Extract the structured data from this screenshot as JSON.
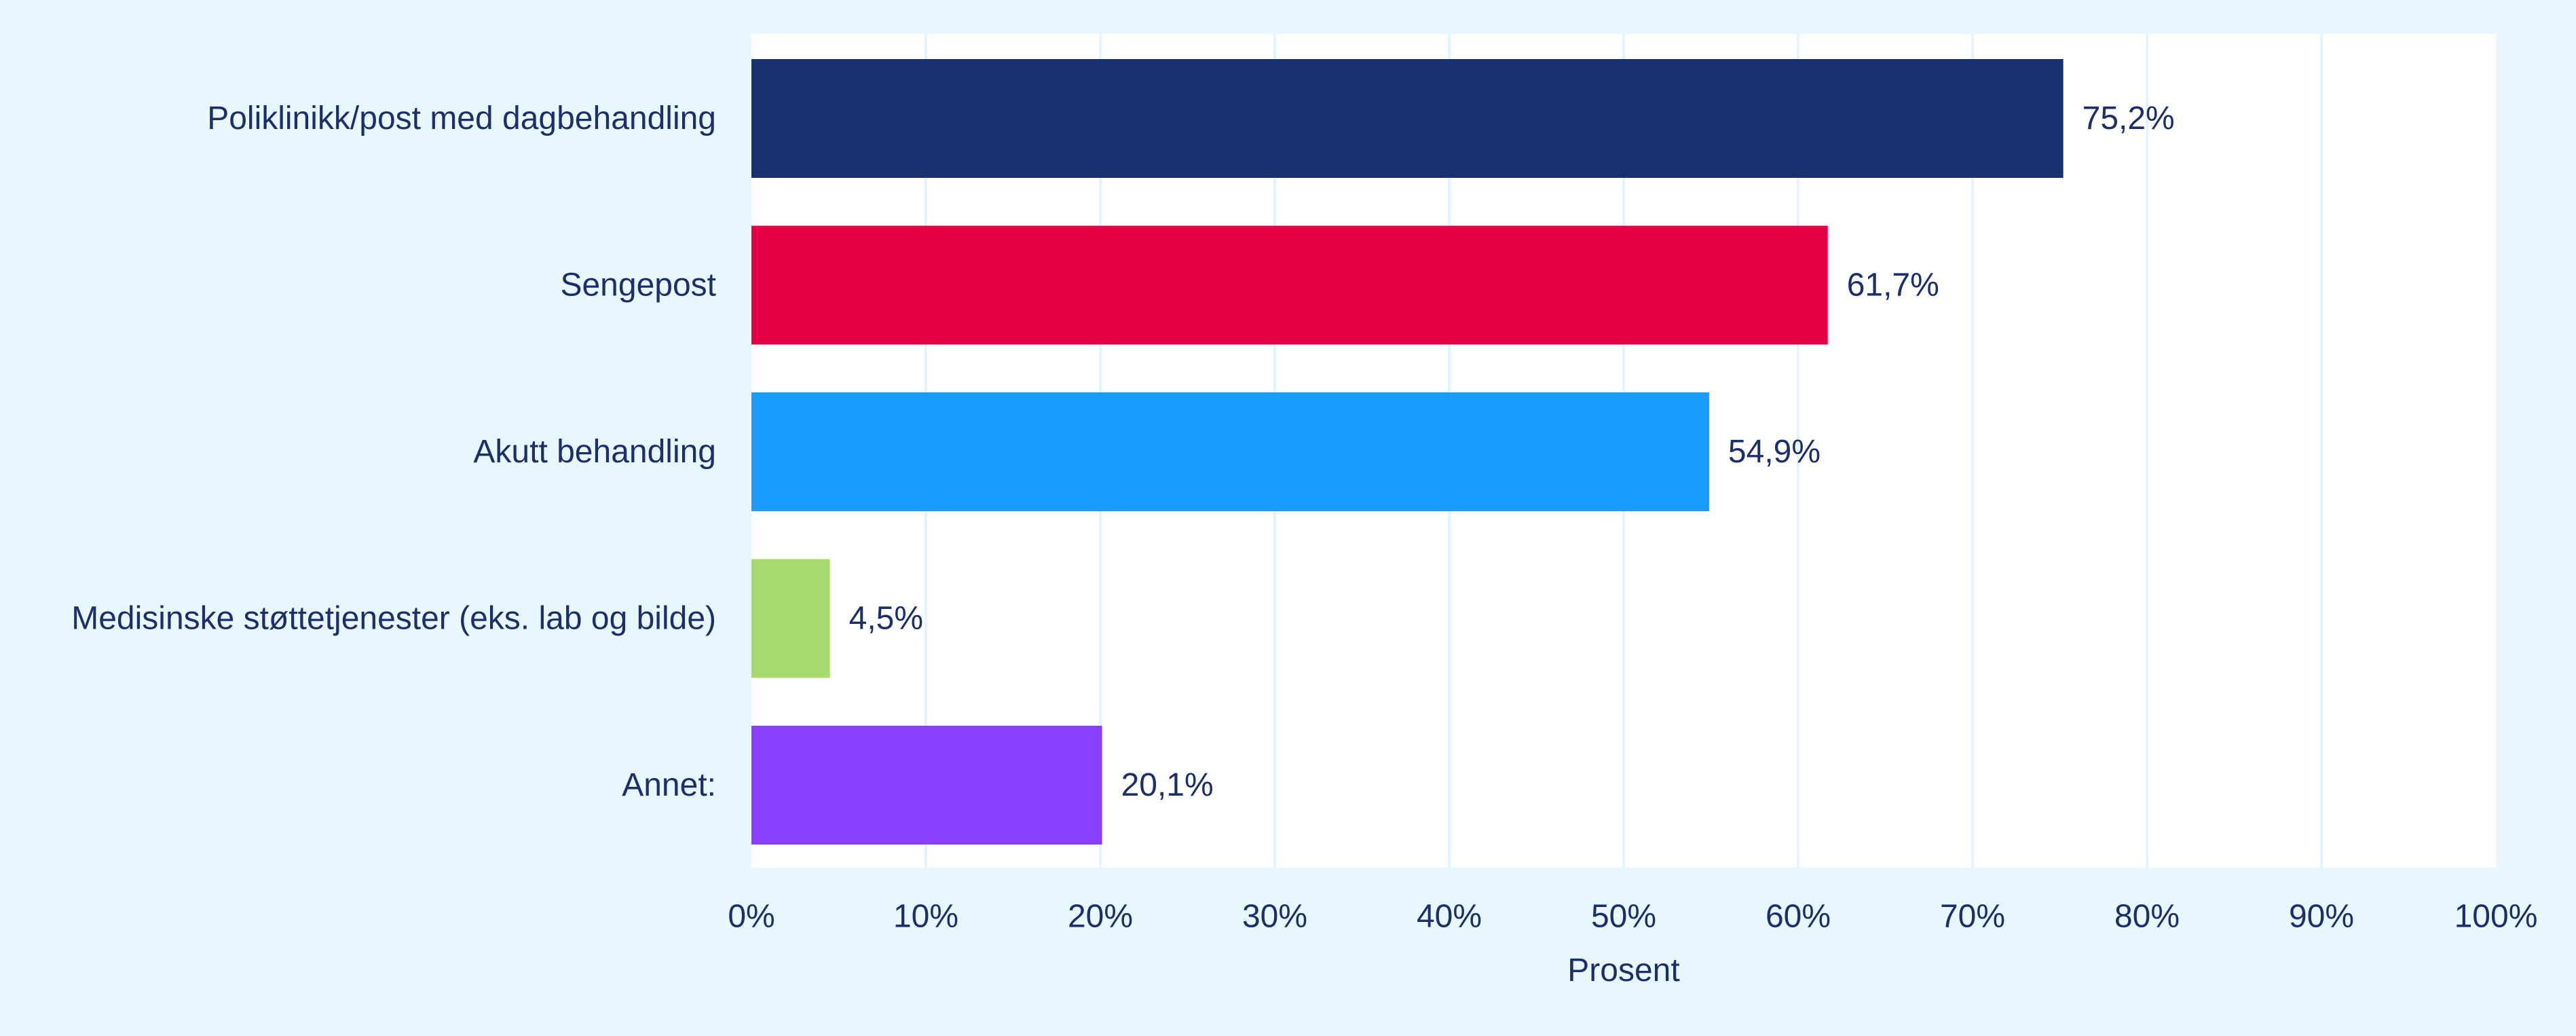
{
  "chart_data": {
    "type": "bar",
    "orientation": "horizontal",
    "categories": [
      "Poliklinikk/post med dagbehandling",
      "Sengepost",
      "Akutt behandling",
      "Medisinske støttetjenester (eks. lab og bilde)",
      "Annet:"
    ],
    "values": [
      75.2,
      61.7,
      54.9,
      4.5,
      20.1
    ],
    "value_labels": [
      "75,2%",
      "61,7%",
      "54,9%",
      "4,5%",
      "20,1%"
    ],
    "colors": [
      "#1a3170",
      "#e30045",
      "#1a9bff",
      "#a8d96c",
      "#8a3ffc"
    ],
    "xlabel": "Prosent",
    "ylabel": "",
    "xlim": [
      0,
      100
    ],
    "xticks": [
      0,
      10,
      20,
      30,
      40,
      50,
      60,
      70,
      80,
      90,
      100
    ],
    "xtick_labels": [
      "0%",
      "10%",
      "20%",
      "30%",
      "40%",
      "50%",
      "60%",
      "70%",
      "80%",
      "90%",
      "100%"
    ],
    "grid": true,
    "legend": "none",
    "background_color": "#e8f7fd",
    "plot_background_color": "#ffffff",
    "gridline_color": "#e3f4fc",
    "text_color": "#1b2f6b"
  }
}
